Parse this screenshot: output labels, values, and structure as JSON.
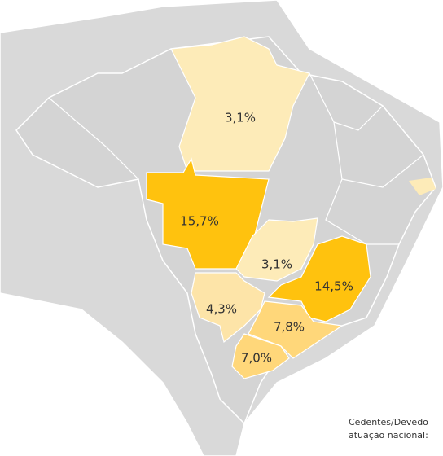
{
  "map": {
    "regions": [
      {
        "label": "3,1%",
        "color": "#fdebb8"
      },
      {
        "label": "15,7%",
        "color": "#ffc20e"
      },
      {
        "label": "3,1%",
        "color": "#fdebb8"
      },
      {
        "label": "14,5%",
        "color": "#ffc20e"
      },
      {
        "label": "4,3%",
        "color": "#fde4a8"
      },
      {
        "label": "7,8%",
        "color": "#ffd77a"
      },
      {
        "label": "7,0%",
        "color": "#ffd77a"
      }
    ],
    "note": [
      "Cedentes/Devedo",
      "atuação nacional:"
    ]
  }
}
